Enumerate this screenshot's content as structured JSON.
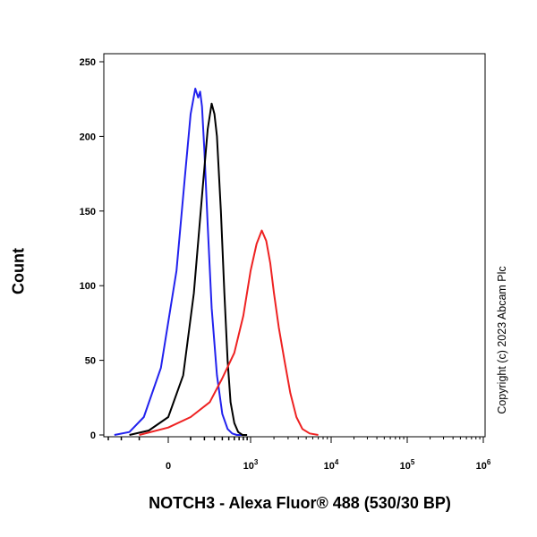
{
  "chart_data": {
    "type": "line",
    "title": "",
    "xlabel": "NOTCH3 - Alexa Fluor® 488 (530/30 BP)",
    "ylabel": "Count",
    "xscale": "biexponential",
    "xlim": [
      -300,
      1000000
    ],
    "ylim": [
      0,
      250
    ],
    "yticks": [
      "0",
      "50",
      "100",
      "150",
      "200",
      "250"
    ],
    "xticks": [
      {
        "value": 0,
        "label": "0"
      },
      {
        "value": 1000,
        "label": "10",
        "exp": "3"
      },
      {
        "value": 10000,
        "label": "10",
        "exp": "4"
      },
      {
        "value": 100000,
        "label": "10",
        "exp": "5"
      },
      {
        "value": 1000000,
        "label": "10",
        "exp": "6"
      }
    ],
    "grid": false,
    "legend": "none",
    "series": [
      {
        "color": "#2222ee",
        "x": [
          -250,
          -150,
          -80,
          -20,
          30,
          70,
          100,
          130,
          150,
          165,
          180,
          200,
          230,
          270,
          330,
          400,
          480,
          560,
          650,
          800
        ],
        "y": [
          0,
          2,
          12,
          45,
          110,
          175,
          215,
          232,
          226,
          230,
          220,
          190,
          140,
          85,
          40,
          14,
          4,
          1,
          0,
          0
        ]
      },
      {
        "color": "#000000",
        "x": [
          -150,
          -60,
          0,
          60,
          120,
          180,
          230,
          270,
          300,
          330,
          380,
          430,
          480,
          530,
          600,
          680,
          780,
          900
        ],
        "y": [
          0,
          3,
          12,
          40,
          95,
          160,
          205,
          222,
          215,
          200,
          150,
          95,
          50,
          22,
          8,
          2,
          0,
          0
        ]
      },
      {
        "color": "#ee2222",
        "x": [
          -100,
          0,
          100,
          250,
          400,
          600,
          800,
          1000,
          1200,
          1400,
          1600,
          1800,
          2000,
          2300,
          2700,
          3200,
          3800,
          4500,
          5500,
          7000
        ],
        "y": [
          0,
          5,
          12,
          22,
          38,
          55,
          80,
          110,
          128,
          137,
          130,
          115,
          95,
          72,
          50,
          28,
          12,
          4,
          1,
          0
        ]
      }
    ]
  },
  "copyright": "Copyright (c) 2023 Abcam Plc"
}
